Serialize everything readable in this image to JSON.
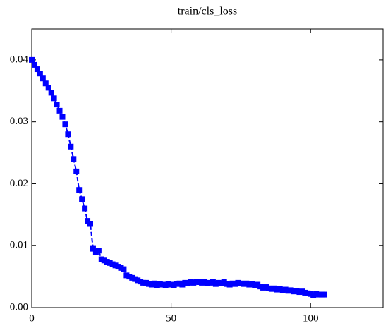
{
  "chart_data": {
    "type": "line",
    "title": "train/cls_loss",
    "color": "#0000ff",
    "marker": "square",
    "line_style": "dashed",
    "x": [
      0,
      1,
      2,
      3,
      4,
      5,
      6,
      7,
      8,
      9,
      10,
      11,
      12,
      13,
      14,
      15,
      16,
      17,
      18,
      19,
      20,
      21,
      22,
      23,
      24,
      25,
      26,
      27,
      28,
      29,
      30,
      31,
      32,
      33,
      34,
      35,
      36,
      37,
      38,
      39,
      40,
      41,
      42,
      43,
      44,
      45,
      46,
      47,
      48,
      49,
      50,
      51,
      52,
      53,
      54,
      55,
      56,
      57,
      58,
      59,
      60,
      61,
      62,
      63,
      64,
      65,
      66,
      67,
      68,
      69,
      70,
      71,
      72,
      73,
      74,
      75,
      76,
      77,
      78,
      79,
      80,
      81,
      82,
      83,
      84,
      85,
      86,
      87,
      88,
      89,
      90,
      91,
      92,
      93,
      94,
      95,
      96,
      97,
      98,
      99,
      100,
      101,
      102,
      103,
      104,
      105
    ],
    "values": [
      0.04,
      0.0392,
      0.0385,
      0.0378,
      0.037,
      0.0362,
      0.0355,
      0.0347,
      0.0338,
      0.0328,
      0.0318,
      0.0308,
      0.0296,
      0.028,
      0.026,
      0.024,
      0.022,
      0.019,
      0.0175,
      0.016,
      0.014,
      0.0135,
      0.0095,
      0.009,
      0.0092,
      0.0078,
      0.0076,
      0.0074,
      0.0072,
      0.007,
      0.0068,
      0.0066,
      0.0064,
      0.0062,
      0.0052,
      0.005,
      0.0048,
      0.0046,
      0.0044,
      0.0042,
      0.004,
      0.004,
      0.0038,
      0.0037,
      0.0039,
      0.0036,
      0.0038,
      0.0037,
      0.0036,
      0.0038,
      0.0037,
      0.0036,
      0.0038,
      0.0039,
      0.0037,
      0.004,
      0.0039,
      0.0041,
      0.004,
      0.0042,
      0.0041,
      0.004,
      0.0041,
      0.0039,
      0.004,
      0.0041,
      0.0038,
      0.004,
      0.0039,
      0.0041,
      0.0038,
      0.0037,
      0.0039,
      0.0038,
      0.004,
      0.0039,
      0.0038,
      0.0039,
      0.0037,
      0.0038,
      0.0036,
      0.0037,
      0.0034,
      0.0032,
      0.0033,
      0.0031,
      0.003,
      0.0031,
      0.0029,
      0.003,
      0.0028,
      0.0029,
      0.0027,
      0.0028,
      0.0026,
      0.0027,
      0.0025,
      0.0026,
      0.0024,
      0.0023,
      0.0022,
      0.002,
      0.0022,
      0.0021,
      0.0021,
      0.0021
    ],
    "xlim": [
      0,
      126
    ],
    "ylim": [
      0,
      0.045
    ],
    "xticks": [
      0,
      50,
      100
    ],
    "yticks": [
      {
        "value": 0,
        "label": "0.00"
      },
      {
        "value": 0.01,
        "label": "0.01"
      },
      {
        "value": 0.02,
        "label": "0.02"
      },
      {
        "value": 0.03,
        "label": "0.03"
      },
      {
        "value": 0.04,
        "label": "0.04"
      }
    ]
  }
}
